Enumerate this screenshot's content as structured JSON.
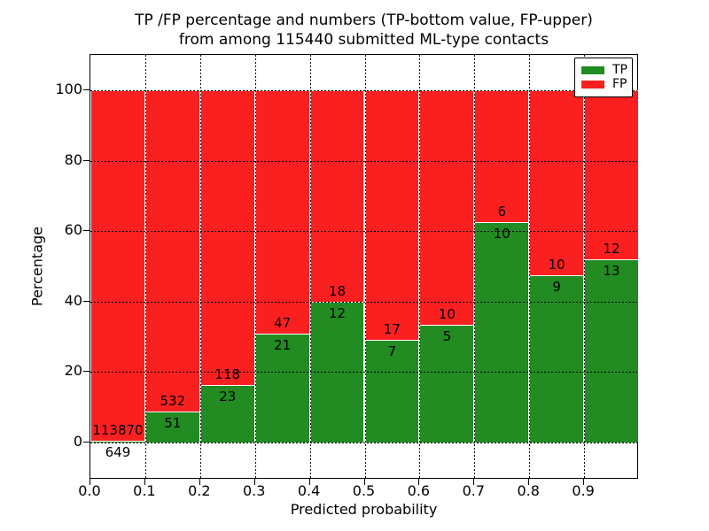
{
  "chart_data": {
    "type": "bar",
    "stacked": true,
    "normalized_to_percent": true,
    "title_line1": "TP /FP percentage and numbers (TP-bottom value, FP-upper)",
    "title_line2": "from among 115440 submitted ML-type contacts",
    "total_contacts": 115440,
    "xlabel": "Predicted probability",
    "ylabel": "Percentage",
    "x_tick_labels": [
      "0.0",
      "0.1",
      "0.2",
      "0.3",
      "0.4",
      "0.5",
      "0.6",
      "0.7",
      "0.8",
      "0.9"
    ],
    "y_ticks": [
      0,
      20,
      40,
      60,
      80,
      100
    ],
    "bin_edges": [
      0.0,
      0.1,
      0.2,
      0.3,
      0.4,
      0.5,
      0.6,
      0.7,
      0.8,
      0.9,
      1.0
    ],
    "grid": "dotted",
    "legend": {
      "position": "upper right",
      "entries": [
        {
          "label": "TP",
          "color": "#228B22"
        },
        {
          "label": "FP",
          "color": "#fb2020"
        }
      ]
    },
    "series": [
      {
        "name": "TP",
        "position": "bottom",
        "counts": [
          649,
          51,
          23,
          21,
          12,
          7,
          5,
          10,
          9,
          13
        ]
      },
      {
        "name": "FP",
        "position": "top",
        "counts": [
          113870,
          532,
          118,
          47,
          18,
          17,
          10,
          6,
          10,
          12
        ]
      }
    ],
    "tp_percent": [
      0.57,
      8.75,
      16.31,
      30.88,
      40.0,
      29.17,
      33.33,
      62.5,
      47.37,
      52.0
    ]
  }
}
